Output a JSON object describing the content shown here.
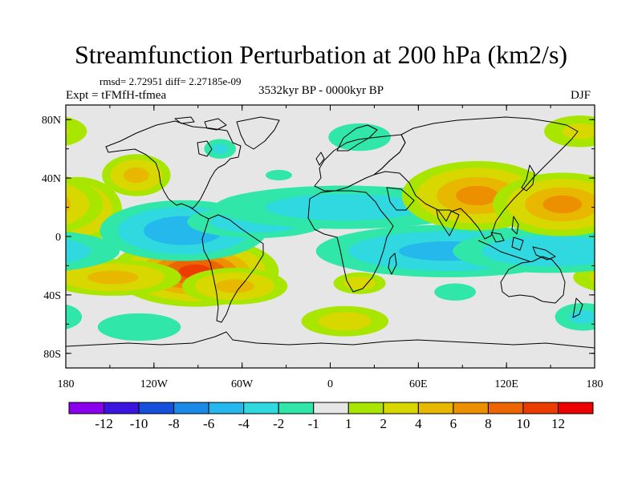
{
  "title": "Streamfunction Perturbation at 200 hPa (km2/s)",
  "stats": "rmsd= 2.72951 diff= 2.27185e-09",
  "experiment": "Expt = tFMfH-tfmea",
  "period": "3532kyr BP - 0000kyr BP",
  "season": "DJF",
  "axes": {
    "lon_ticks": [
      {
        "lon": -180,
        "label": "180"
      },
      {
        "lon": -120,
        "label": "120W"
      },
      {
        "lon": -60,
        "label": "60W"
      },
      {
        "lon": 0,
        "label": "0"
      },
      {
        "lon": 60,
        "label": "60E"
      },
      {
        "lon": 120,
        "label": "120E"
      },
      {
        "lon": 180,
        "label": "180"
      }
    ],
    "lat_ticks": [
      {
        "lat": 80,
        "label": "80N"
      },
      {
        "lat": 40,
        "label": "40N"
      },
      {
        "lat": 0,
        "label": "0"
      },
      {
        "lat": -40,
        "label": "40S"
      },
      {
        "lat": -80,
        "label": "80S"
      }
    ]
  },
  "colorbar": {
    "colors": [
      "#8a00ee",
      "#3c14e0",
      "#1450dc",
      "#1a8ae8",
      "#24b8ec",
      "#30d8e0",
      "#30e6a8",
      "#e6e6e6",
      "#a8e600",
      "#d8d800",
      "#e8b800",
      "#ec9000",
      "#ec6600",
      "#ec3c00",
      "#ec0000"
    ],
    "labels": [
      "-12",
      "-10",
      "-8",
      "-6",
      "-4",
      "-2",
      "-1",
      "1",
      "2",
      "4",
      "6",
      "8",
      "10",
      "12"
    ]
  },
  "field": {
    "background": "#e6e6e6",
    "anomalies": [
      {
        "lon": -92,
        "lat": -24,
        "sx": 26,
        "sy": 11,
        "value": 11
      },
      {
        "lon": -65,
        "lat": -34,
        "sx": 20,
        "sy": 7,
        "value": 5
      },
      {
        "lon": -148,
        "lat": -28,
        "sx": 26,
        "sy": 7,
        "value": 5
      },
      {
        "lon": -172,
        "lat": 18,
        "sx": 16,
        "sy": 12,
        "value": 6
      },
      {
        "lon": -132,
        "lat": 42,
        "sx": 13,
        "sy": 8,
        "value": 5
      },
      {
        "lon": -100,
        "lat": 4,
        "sx": 30,
        "sy": 11,
        "value": -6
      },
      {
        "lon": -50,
        "lat": 10,
        "sx": 30,
        "sy": 7,
        "value": -3.5
      },
      {
        "lon": 10,
        "lat": 20,
        "sx": 60,
        "sy": 10,
        "value": -3
      },
      {
        "lon": 80,
        "lat": -10,
        "sx": 50,
        "sy": 10,
        "value": -5
      },
      {
        "lon": 150,
        "lat": -10,
        "sx": 40,
        "sy": 9,
        "value": -4
      },
      {
        "lon": 100,
        "lat": 28,
        "sx": 26,
        "sy": 12,
        "value": 7
      },
      {
        "lon": 158,
        "lat": 22,
        "sx": 24,
        "sy": 11,
        "value": 7
      },
      {
        "lon": 170,
        "lat": 72,
        "sx": 18,
        "sy": 8,
        "value": 2.5
      },
      {
        "lon": 20,
        "lat": 68,
        "sx": 18,
        "sy": 8,
        "value": -2
      },
      {
        "lon": -75,
        "lat": 60,
        "sx": 8,
        "sy": 5,
        "value": -2.5
      },
      {
        "lon": -35,
        "lat": 42,
        "sx": 10,
        "sy": 4,
        "value": -1.5
      },
      {
        "lon": 10,
        "lat": -58,
        "sx": 20,
        "sy": 7,
        "value": 3
      },
      {
        "lon": 20,
        "lat": -32,
        "sx": 12,
        "sy": 5,
        "value": 3
      },
      {
        "lon": -130,
        "lat": -62,
        "sx": 24,
        "sy": 8,
        "value": -2
      },
      {
        "lon": 85,
        "lat": -38,
        "sx": 12,
        "sy": 5,
        "value": -2
      },
      {
        "lon": 172,
        "lat": -55,
        "sx": 14,
        "sy": 7,
        "value": -2.5
      }
    ]
  }
}
